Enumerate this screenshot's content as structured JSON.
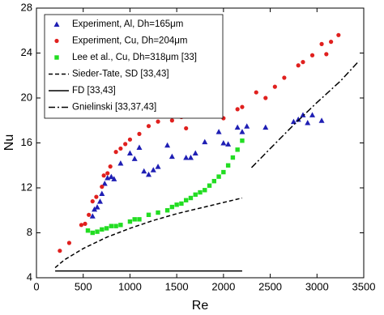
{
  "chart_data": {
    "type": "scatter",
    "x_label": "Re",
    "y_label": "Nu",
    "xlim": [
      0,
      3500
    ],
    "xticks": [
      0,
      500,
      1000,
      1500,
      2000,
      2500,
      3000,
      3500
    ],
    "ylim": [
      4,
      28
    ],
    "yticks": [
      4,
      8,
      12,
      16,
      20,
      24,
      28
    ],
    "legend": "upper left",
    "series": [
      {
        "name": "Experiment, Al, Dh=165μm",
        "color": "#1f1fb4",
        "marker": "triangle",
        "x": [
          600,
          620,
          650,
          680,
          700,
          730,
          760,
          800,
          830,
          900,
          1000,
          1050,
          1100,
          1150,
          1200,
          1250,
          1300,
          1400,
          1450,
          1600,
          1650,
          1700,
          1800,
          1950,
          2000,
          2050,
          2150,
          2200,
          2250,
          2450,
          2750,
          2800,
          2850,
          2900,
          2950,
          3050
        ],
        "values": [
          9.5,
          10.1,
          10.3,
          10.8,
          11.5,
          12.4,
          12.9,
          13.0,
          12.8,
          14.2,
          15.1,
          14.6,
          15.6,
          13.5,
          13.2,
          13.6,
          13.9,
          15.8,
          14.8,
          14.7,
          14.7,
          15.1,
          16.1,
          17.0,
          16.0,
          15.9,
          17.4,
          17.0,
          17.5,
          17.4,
          17.9,
          18.1,
          18.5,
          17.8,
          18.5,
          18.0
        ]
      },
      {
        "name": "Experiment, Cu, Dh=204μm",
        "color": "#e0201e",
        "marker": "circle",
        "x": [
          250,
          350,
          480,
          520,
          560,
          600,
          640,
          700,
          720,
          760,
          790,
          850,
          900,
          950,
          1000,
          1100,
          1200,
          1300,
          1400,
          1450,
          1550,
          1600,
          1700,
          1800,
          1850,
          1950,
          2000,
          2150,
          2200,
          2350,
          2450,
          2550,
          2650,
          2800,
          2850,
          2950,
          3050,
          3100,
          3150,
          3230
        ],
        "values": [
          6.4,
          7.1,
          8.7,
          8.8,
          9.6,
          10.8,
          11.2,
          12.1,
          13.1,
          13.3,
          13.9,
          15.2,
          15.5,
          15.9,
          16.3,
          16.8,
          17.5,
          17.9,
          18.5,
          18.0,
          18.3,
          17.3,
          18.7,
          19.0,
          18.6,
          18.6,
          18.2,
          19.0,
          19.2,
          20.5,
          20.0,
          21.0,
          21.8,
          22.9,
          23.2,
          23.8,
          24.8,
          23.9,
          25.0,
          25.6
        ]
      },
      {
        "name": "Lee et al., Cu, Dh=318μm [33]",
        "color": "#22dd22",
        "marker": "square",
        "x": [
          550,
          600,
          650,
          700,
          750,
          800,
          850,
          900,
          1000,
          1050,
          1100,
          1200,
          1300,
          1400,
          1450,
          1500,
          1550,
          1600,
          1650,
          1700,
          1750,
          1800,
          1850,
          1900,
          1950,
          2000,
          2050,
          2100,
          2150,
          2200
        ],
        "values": [
          8.2,
          8.0,
          8.1,
          8.3,
          8.4,
          8.6,
          8.6,
          8.7,
          9.0,
          9.2,
          9.2,
          9.6,
          9.8,
          10.0,
          10.3,
          10.5,
          10.6,
          10.9,
          11.1,
          11.4,
          11.6,
          11.8,
          12.2,
          12.6,
          13.0,
          13.4,
          14.0,
          14.7,
          15.4,
          16.2
        ]
      },
      {
        "name": "Sieder-Tate, SD [33,43]",
        "color": "#000000",
        "line": "dashed",
        "x": [
          200,
          300,
          500,
          750,
          1000,
          1250,
          1500,
          1750,
          2000,
          2200
        ],
        "values": [
          4.9,
          5.6,
          6.6,
          7.6,
          8.4,
          9.1,
          9.7,
          10.2,
          10.7,
          11.1
        ]
      },
      {
        "name": "FD [33,43]",
        "color": "#000000",
        "line": "solid",
        "x": [
          200,
          2200
        ],
        "values": [
          4.6,
          4.6
        ]
      },
      {
        "name": "Gnielinski [33,37,43]",
        "color": "#000000",
        "line": "dashdot",
        "x": [
          2300,
          2500,
          2750,
          3000,
          3250,
          3450
        ],
        "values": [
          13.8,
          15.5,
          17.6,
          19.6,
          21.5,
          23.3
        ]
      }
    ]
  }
}
